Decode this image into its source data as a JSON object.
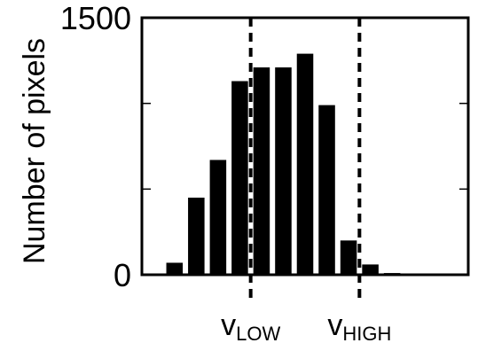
{
  "chart_data": {
    "type": "bar",
    "title": "",
    "xlabel": "",
    "ylabel": "Number of pixels",
    "ylim": [
      0,
      1500
    ],
    "yticks": [
      {
        "value": 0,
        "label": "0"
      },
      {
        "value": 1500,
        "label": "1500"
      }
    ],
    "ytick_marks": [
      0,
      500,
      1000,
      1500
    ],
    "bins": 15,
    "values": [
      0,
      70,
      450,
      670,
      1130,
      1210,
      1210,
      1290,
      990,
      200,
      60,
      10,
      0,
      0,
      0
    ],
    "bar_color": "#000000",
    "thresholds": [
      {
        "name": "v_low",
        "label": "v",
        "subscript": "LOW",
        "bin_edge": 5
      },
      {
        "name": "v_high",
        "label": "v",
        "subscript": "HIGH",
        "bin_edge": 10
      }
    ],
    "threshold_style": "dashed",
    "grid": false,
    "legend": "none"
  }
}
